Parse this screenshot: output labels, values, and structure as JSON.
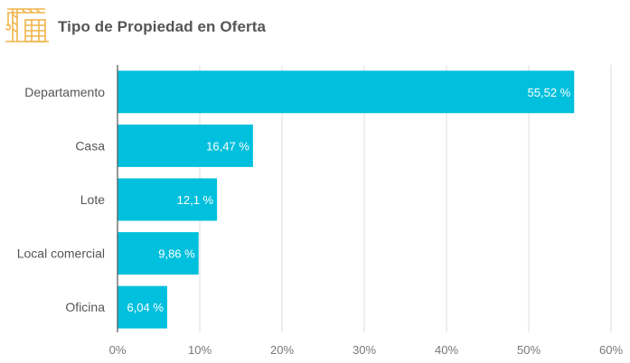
{
  "header": {
    "title": "Tipo de Propiedad en Oferta",
    "icon": "construction-crane-icon"
  },
  "colors": {
    "bar": "#00c0dd",
    "grid": "#dddddd",
    "axis": "#555555",
    "icon": "#f0b44a"
  },
  "chart_data": {
    "type": "bar",
    "orientation": "horizontal",
    "categories": [
      "Departamento",
      "Casa",
      "Lote",
      "Local comercial",
      "Oficina"
    ],
    "values": [
      55.52,
      16.47,
      12.1,
      9.86,
      6.04
    ],
    "data_labels": [
      "55,52 %",
      "16,47 %",
      "12,1 %",
      "9,86 %",
      "6,04 %"
    ],
    "xlim": [
      0,
      60
    ],
    "xticks": [
      0,
      10,
      20,
      30,
      40,
      50,
      60
    ],
    "xtick_labels": [
      "0%",
      "10%",
      "20%",
      "30%",
      "40%",
      "50%",
      "60%"
    ],
    "grid": true,
    "title": "Tipo de Propiedad en Oferta"
  }
}
